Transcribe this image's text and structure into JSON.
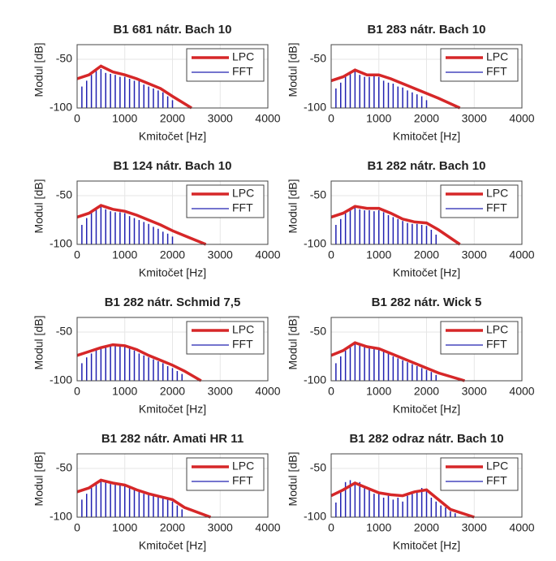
{
  "chart_data": [
    {
      "type": "line",
      "title": "B1 681 nátr. Bach 10",
      "xlabel": "Kmitočet [Hz]",
      "ylabel": "Modul [dB]",
      "xlim": [
        0,
        4000
      ],
      "ylim": [
        -100,
        -35
      ],
      "xticks": [
        0,
        1000,
        2000,
        3000,
        4000
      ],
      "yticks": [
        -100,
        -50
      ],
      "legend": "upper right",
      "series": [
        {
          "name": "LPC",
          "color": "#d62728",
          "x": [
            0,
            250,
            500,
            750,
            1000,
            1250,
            1500,
            1750,
            2000,
            2400
          ],
          "values": [
            -70,
            -66,
            -57,
            -63,
            -66,
            -70,
            -75,
            -80,
            -88,
            -100
          ]
        },
        {
          "name": "FFT",
          "color": "#2020b0",
          "x": [
            100,
            200,
            300,
            400,
            500,
            600,
            700,
            800,
            900,
            1000,
            1100,
            1200,
            1300,
            1400,
            1500,
            1600,
            1700,
            1800,
            1900,
            2000
          ],
          "values": [
            -78,
            -72,
            -66,
            -62,
            -60,
            -64,
            -65,
            -66,
            -68,
            -68,
            -70,
            -72,
            -72,
            -76,
            -78,
            -80,
            -82,
            -84,
            -88,
            -92
          ]
        }
      ]
    },
    {
      "type": "line",
      "title": "B1 283 nátr. Bach 10",
      "xlabel": "Kmitočet [Hz]",
      "ylabel": "Modul [dB]",
      "xlim": [
        0,
        4000
      ],
      "ylim": [
        -100,
        -35
      ],
      "xticks": [
        0,
        1000,
        2000,
        3000,
        4000
      ],
      "yticks": [
        -100,
        -50
      ],
      "legend": "upper right",
      "series": [
        {
          "name": "LPC",
          "color": "#d62728",
          "x": [
            0,
            250,
            500,
            750,
            1000,
            1250,
            1500,
            1750,
            2000,
            2250,
            2700
          ],
          "values": [
            -72,
            -68,
            -61,
            -66,
            -66,
            -70,
            -75,
            -80,
            -85,
            -90,
            -100
          ]
        },
        {
          "name": "FFT",
          "color": "#2020b0",
          "x": [
            100,
            200,
            300,
            400,
            500,
            600,
            700,
            800,
            900,
            1000,
            1100,
            1200,
            1300,
            1400,
            1500,
            1600,
            1700,
            1800,
            1900,
            2000
          ],
          "values": [
            -80,
            -74,
            -68,
            -64,
            -62,
            -66,
            -68,
            -68,
            -67,
            -68,
            -72,
            -74,
            -75,
            -78,
            -79,
            -82,
            -84,
            -86,
            -88,
            -92
          ]
        }
      ]
    },
    {
      "type": "line",
      "title": "B1 124 nátr. Bach 10",
      "xlabel": "Kmitočet [Hz]",
      "ylabel": "Modul [dB]",
      "xlim": [
        0,
        4000
      ],
      "ylim": [
        -100,
        -35
      ],
      "xticks": [
        0,
        1000,
        2000,
        3000,
        4000
      ],
      "yticks": [
        -100,
        -50
      ],
      "legend": "upper right",
      "series": [
        {
          "name": "LPC",
          "color": "#d62728",
          "x": [
            0,
            250,
            500,
            750,
            1000,
            1250,
            1500,
            1750,
            2000,
            2250,
            2700
          ],
          "values": [
            -72,
            -68,
            -60,
            -64,
            -66,
            -70,
            -75,
            -80,
            -86,
            -91,
            -100
          ]
        },
        {
          "name": "FFT",
          "color": "#2020b0",
          "x": [
            100,
            200,
            300,
            400,
            500,
            600,
            700,
            800,
            900,
            1000,
            1100,
            1200,
            1300,
            1400,
            1500,
            1600,
            1700,
            1800,
            1900,
            2000
          ],
          "values": [
            -80,
            -73,
            -67,
            -63,
            -61,
            -64,
            -66,
            -67,
            -67,
            -68,
            -71,
            -73,
            -75,
            -77,
            -79,
            -82,
            -84,
            -87,
            -89,
            -92
          ]
        }
      ]
    },
    {
      "type": "line",
      "title": "B1 282 nátr. Bach 10",
      "xlabel": "Kmitočet [Hz]",
      "ylabel": "Modul [dB]",
      "xlim": [
        0,
        4000
      ],
      "ylim": [
        -100,
        -35
      ],
      "xticks": [
        0,
        1000,
        2000,
        3000,
        4000
      ],
      "yticks": [
        -100,
        -50
      ],
      "legend": "upper right",
      "series": [
        {
          "name": "LPC",
          "color": "#d62728",
          "x": [
            0,
            250,
            500,
            750,
            1000,
            1250,
            1500,
            1750,
            2000,
            2250,
            2700
          ],
          "values": [
            -72,
            -68,
            -61,
            -63,
            -63,
            -68,
            -74,
            -77,
            -78,
            -85,
            -100
          ]
        },
        {
          "name": "FFT",
          "color": "#2020b0",
          "x": [
            100,
            200,
            300,
            400,
            500,
            600,
            700,
            800,
            900,
            1000,
            1100,
            1200,
            1300,
            1400,
            1500,
            1600,
            1700,
            1800,
            1900,
            2000,
            2100,
            2200
          ],
          "values": [
            -80,
            -74,
            -68,
            -64,
            -62,
            -64,
            -65,
            -65,
            -66,
            -65,
            -67,
            -70,
            -72,
            -74,
            -76,
            -78,
            -79,
            -79,
            -80,
            -81,
            -85,
            -90
          ]
        }
      ]
    },
    {
      "type": "line",
      "title": "B1 282 nátr. Schmid 7,5",
      "xlabel": "Kmitočet [Hz]",
      "ylabel": "Modul [dB]",
      "xlim": [
        0,
        4000
      ],
      "ylim": [
        -100,
        -35
      ],
      "xticks": [
        0,
        1000,
        2000,
        3000,
        4000
      ],
      "yticks": [
        -100,
        -50
      ],
      "legend": "upper right",
      "series": [
        {
          "name": "LPC",
          "color": "#d62728",
          "x": [
            0,
            250,
            500,
            750,
            1000,
            1250,
            1500,
            1750,
            2000,
            2250,
            2600
          ],
          "values": [
            -74,
            -70,
            -66,
            -63,
            -64,
            -68,
            -74,
            -79,
            -84,
            -90,
            -100
          ]
        },
        {
          "name": "FFT",
          "color": "#2020b0",
          "x": [
            100,
            200,
            300,
            400,
            500,
            600,
            700,
            800,
            900,
            1000,
            1100,
            1200,
            1300,
            1400,
            1500,
            1600,
            1700,
            1800,
            1900,
            2000,
            2100,
            2200
          ],
          "values": [
            -82,
            -76,
            -72,
            -68,
            -66,
            -64,
            -63,
            -64,
            -64,
            -65,
            -67,
            -69,
            -72,
            -74,
            -76,
            -78,
            -80,
            -82,
            -85,
            -87,
            -90,
            -93
          ]
        }
      ]
    },
    {
      "type": "line",
      "title": "B1 282 nátr. Wick 5",
      "xlabel": "Kmitočet [Hz]",
      "ylabel": "Modul [dB]",
      "xlim": [
        0,
        4000
      ],
      "ylim": [
        -100,
        -35
      ],
      "xticks": [
        0,
        1000,
        2000,
        3000,
        4000
      ],
      "yticks": [
        -100,
        -50
      ],
      "legend": "upper right",
      "series": [
        {
          "name": "LPC",
          "color": "#d62728",
          "x": [
            0,
            250,
            500,
            750,
            1000,
            1250,
            1500,
            1750,
            2000,
            2250,
            2800
          ],
          "values": [
            -74,
            -69,
            -61,
            -65,
            -67,
            -72,
            -77,
            -82,
            -87,
            -92,
            -100
          ]
        },
        {
          "name": "FFT",
          "color": "#2020b0",
          "x": [
            100,
            200,
            300,
            400,
            500,
            600,
            700,
            800,
            900,
            1000,
            1100,
            1200,
            1300,
            1400,
            1500,
            1600,
            1700,
            1800,
            1900,
            2000,
            2100,
            2200
          ],
          "values": [
            -82,
            -75,
            -69,
            -64,
            -62,
            -63,
            -65,
            -66,
            -67,
            -68,
            -70,
            -72,
            -75,
            -77,
            -79,
            -81,
            -83,
            -85,
            -87,
            -89,
            -91,
            -94
          ]
        }
      ]
    },
    {
      "type": "line",
      "title": "B1 282 nátr. Amati HR 11",
      "xlabel": "Kmitočet [Hz]",
      "ylabel": "Modul [dB]",
      "xlim": [
        0,
        4000
      ],
      "ylim": [
        -100,
        -35
      ],
      "xticks": [
        0,
        1000,
        2000,
        3000,
        4000
      ],
      "yticks": [
        -100,
        -50
      ],
      "legend": "upper right",
      "series": [
        {
          "name": "LPC",
          "color": "#d62728",
          "x": [
            0,
            250,
            500,
            750,
            1000,
            1250,
            1500,
            1750,
            2000,
            2250,
            2800
          ],
          "values": [
            -74,
            -70,
            -62,
            -65,
            -67,
            -72,
            -76,
            -79,
            -82,
            -90,
            -100
          ]
        },
        {
          "name": "FFT",
          "color": "#2020b0",
          "x": [
            100,
            200,
            300,
            400,
            500,
            600,
            700,
            800,
            900,
            1000,
            1100,
            1200,
            1300,
            1400,
            1500,
            1600,
            1700,
            1800,
            1900,
            2000,
            2100,
            2200
          ],
          "values": [
            -82,
            -76,
            -70,
            -65,
            -63,
            -64,
            -66,
            -66,
            -67,
            -68,
            -70,
            -72,
            -74,
            -76,
            -77,
            -78,
            -79,
            -80,
            -82,
            -84,
            -88,
            -92
          ]
        }
      ]
    },
    {
      "type": "line",
      "title": "B1 282 odraz nátr. Bach 10",
      "xlabel": "Kmitočet [Hz]",
      "ylabel": "Modul [dB]",
      "xlim": [
        0,
        4000
      ],
      "ylim": [
        -100,
        -35
      ],
      "xticks": [
        0,
        1000,
        2000,
        3000,
        4000
      ],
      "yticks": [
        -100,
        -50
      ],
      "legend": "upper right",
      "series": [
        {
          "name": "LPC",
          "color": "#d62728",
          "x": [
            0,
            250,
            500,
            750,
            1000,
            1250,
            1500,
            1750,
            2000,
            2250,
            2500,
            3000
          ],
          "values": [
            -78,
            -72,
            -65,
            -70,
            -75,
            -77,
            -78,
            -74,
            -72,
            -82,
            -92,
            -100
          ]
        },
        {
          "name": "FFT",
          "color": "#2020b0",
          "x": [
            100,
            200,
            300,
            400,
            500,
            600,
            700,
            800,
            900,
            1000,
            1100,
            1200,
            1300,
            1400,
            1500,
            1600,
            1700,
            1800,
            1900,
            2000,
            2100,
            2200,
            2300,
            2400,
            2500,
            2600
          ],
          "values": [
            -85,
            -74,
            -64,
            -62,
            -66,
            -64,
            -70,
            -72,
            -76,
            -74,
            -80,
            -78,
            -82,
            -80,
            -84,
            -78,
            -76,
            -74,
            -70,
            -72,
            -80,
            -84,
            -88,
            -90,
            -94,
            -96
          ]
        }
      ]
    }
  ]
}
